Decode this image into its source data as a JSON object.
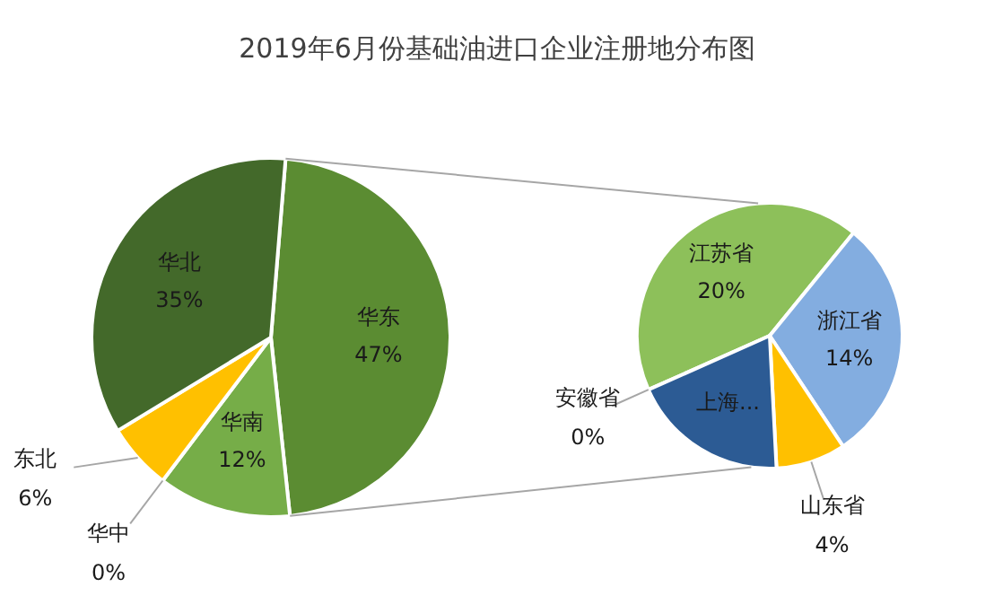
{
  "chart_data": [
    {
      "type": "pie",
      "title": "2019年6月份基础油进口企业注册地分布图",
      "categories": [
        "华东",
        "华南",
        "华中",
        "东北",
        "华北"
      ],
      "values": [
        47,
        12,
        0,
        6,
        35
      ],
      "value_labels": [
        "47%",
        "12%",
        "0%",
        "6%",
        "35%"
      ],
      "colors": [
        "#5b8c32",
        "#76ad48",
        "#6e9a3c",
        "#ffc000",
        "#43692a"
      ]
    },
    {
      "type": "pie",
      "categories": [
        "江苏省",
        "浙江省",
        "山东省",
        "上海...",
        "安徽省"
      ],
      "values": [
        20,
        14,
        4,
        9,
        0
      ],
      "value_labels": [
        "20%",
        "14%",
        "4%",
        null,
        "0%"
      ],
      "colors": [
        "#8dc05a",
        "#83ade0",
        "#ffc000",
        "#2c5b94",
        "#a5a5a5"
      ]
    }
  ]
}
